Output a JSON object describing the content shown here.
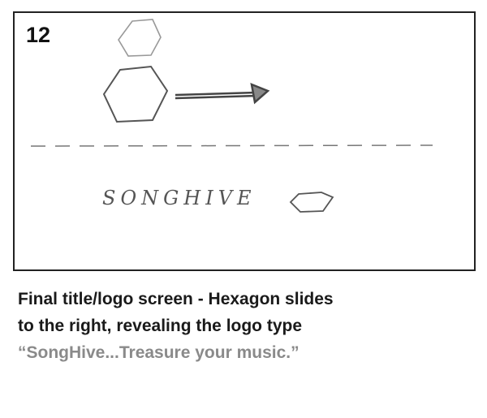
{
  "panel": {
    "number": "12",
    "sketch_text": "SONGHIVE"
  },
  "caption": {
    "lines": [
      "Final title/logo screen - Hexagon slides",
      "to the right, revealing the logo type"
    ],
    "quote": "“SongHive...Treasure your music.”"
  }
}
